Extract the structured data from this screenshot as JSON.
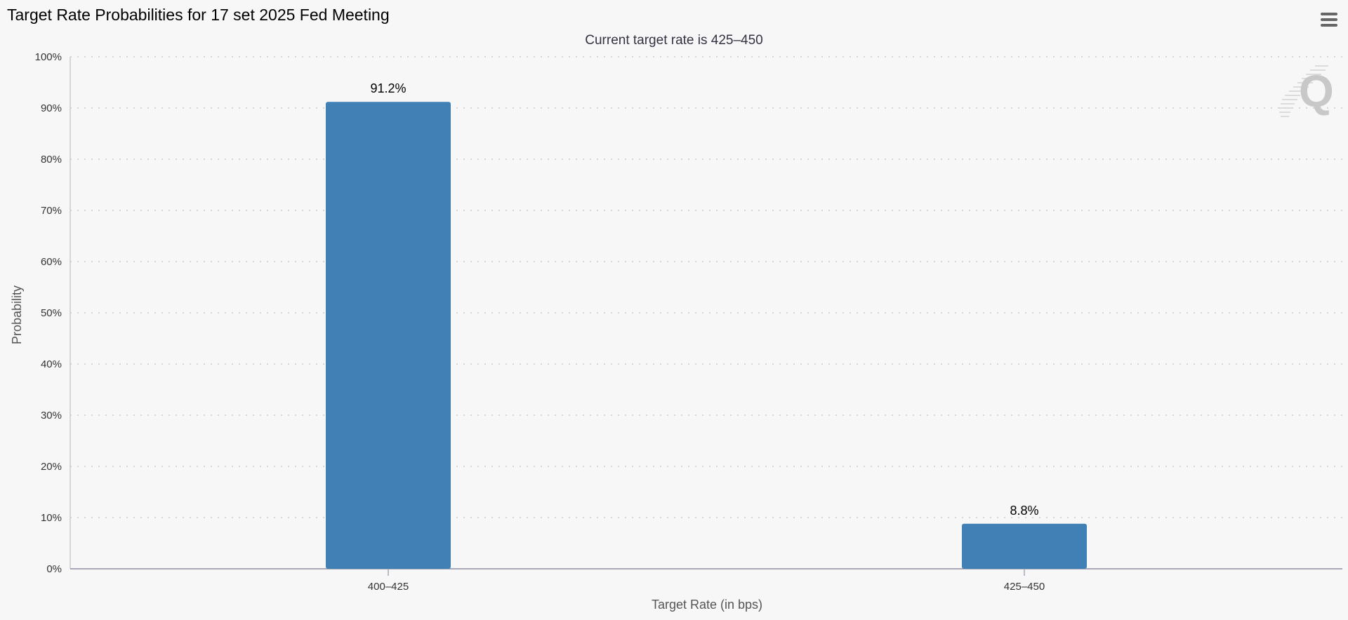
{
  "chart_data": {
    "type": "bar",
    "title": "Target Rate Probabilities for 17 set 2025 Fed Meeting",
    "subtitle": "Current target rate is 425–450",
    "xlabel": "Target Rate (in bps)",
    "ylabel": "Probability",
    "categories": [
      "400–425",
      "425–450"
    ],
    "values": [
      91.2,
      8.8
    ],
    "data_labels": [
      "91.2%",
      "8.8%"
    ],
    "ylim": [
      0,
      100
    ],
    "y_ticks": [
      0,
      10,
      20,
      30,
      40,
      50,
      60,
      70,
      80,
      90,
      100
    ],
    "y_tick_labels": [
      "0%",
      "10%",
      "20%",
      "30%",
      "40%",
      "50%",
      "60%",
      "70%",
      "80%",
      "90%",
      "100%"
    ],
    "grid": true,
    "grid_style": "dotted",
    "bar_color": "#4180b4",
    "legend": "none"
  },
  "toolbar": {
    "menu_icon": "hamburger-menu-icon"
  },
  "watermark": {
    "icon": "quikstrike-q-logo-icon"
  }
}
